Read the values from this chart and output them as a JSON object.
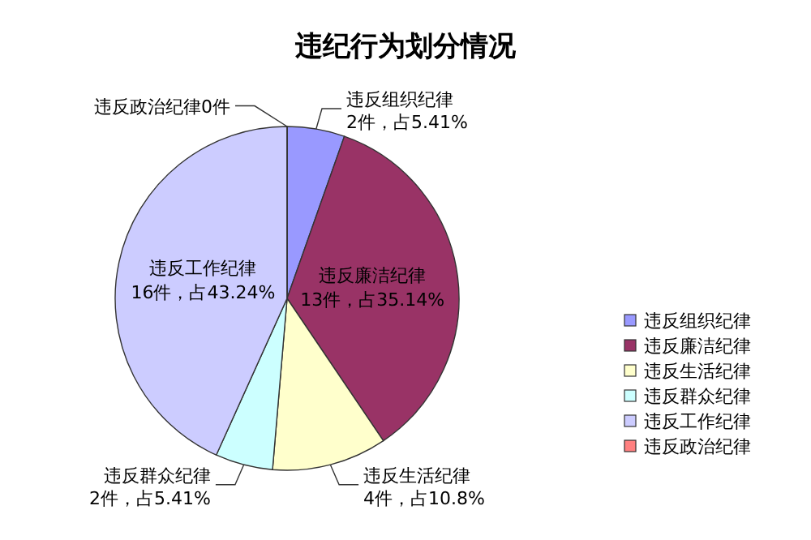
{
  "chart_data": {
    "type": "pie",
    "title": "违纪行为划分情况",
    "categories": [
      "违反组织纪律",
      "违反廉洁纪律",
      "违反生活纪律",
      "违反群众纪律",
      "违反工作纪律",
      "违反政治纪律"
    ],
    "values": [
      2,
      13,
      4,
      2,
      16,
      0
    ],
    "value_labels": [
      "2件，占5.41%",
      "13件，占35.14%",
      "4件，占10.8%",
      "2件，占5.41%",
      "16件，占43.24%",
      "0件"
    ],
    "colors": [
      "#9999ff",
      "#993366",
      "#ffffcc",
      "#ccffff",
      "#ccccff",
      "#ff8080"
    ],
    "legend": "right"
  }
}
